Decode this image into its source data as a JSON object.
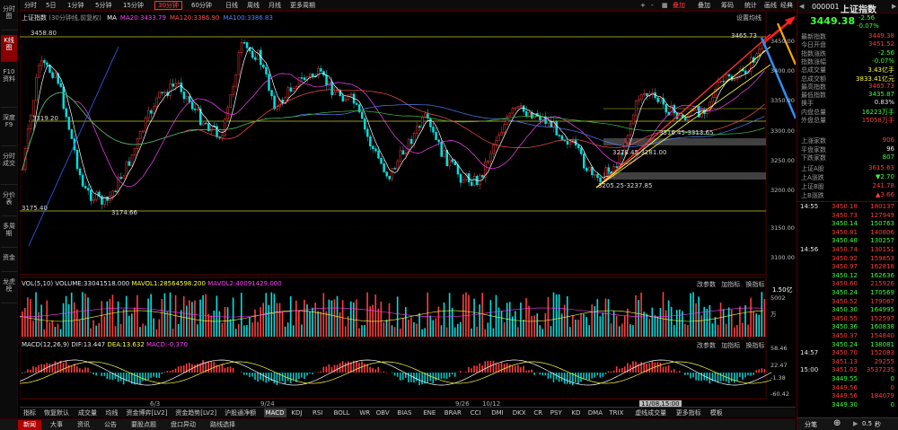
{
  "timeframes": [
    "分时",
    "5日",
    "1分钟",
    "5分钟",
    "15分钟",
    "30分钟",
    "60分钟",
    "日线",
    "周线",
    "月线",
    "更多周期"
  ],
  "active_timeframe": "30分钟",
  "toolbar": {
    "overlay": "叠加",
    "overlay_btn": "叠加",
    "chip": "筹码",
    "stats": "统计",
    "draw": "画线",
    "classic": "经典",
    "indicator": "指标"
  },
  "sidebar": [
    "分时图",
    "K线图",
    "F10资料",
    "深度F9",
    "分时成交",
    "分价表",
    "多周期",
    "资金",
    "龙虎榜"
  ],
  "sidebar_active": "K线图",
  "main_pane": {
    "name": "上证指数",
    "note": "(30分钟线,前复权)",
    "ma": [
      {
        "label": "MA",
        "color": "#ffffff"
      },
      {
        "label": "MA20:3433.79",
        "color": "#ff40ff"
      },
      {
        "label": "MA120:3386.90",
        "color": "#ff5050"
      },
      {
        "label": "MA100:3386.83",
        "color": "#5080ff"
      }
    ],
    "settings": "设置均线",
    "price_axis": [
      "3450.00",
      "3400.00",
      "3350.00",
      "3300.00",
      "3250.00",
      "3200.00",
      "3150.00",
      "3100.00"
    ],
    "annotations": [
      "3458.80",
      "3319.20",
      "3175.40",
      "3174.66",
      "3465.73",
      "3316.45-3313.65",
      "3278.45-3281.00",
      "3205.25-3237.85"
    ]
  },
  "volume_pane": {
    "title": "VOL(5,10)",
    "volume": "VOLUME:33041518.000",
    "mavol1": "MAVOL1:28564598.200",
    "mavol2": "MAVOL2:40091429.000",
    "controls": [
      "改参数",
      "加指标",
      "换指标"
    ],
    "axis": [
      "5002",
      "万"
    ],
    "multiplier": "1.50亿"
  },
  "macd_pane": {
    "title": "MACD(12,26,9)",
    "dif": "DIF:13.447",
    "dea": "DEA:13.632",
    "macd": "MACD:-0.370",
    "controls": [
      "改参数",
      "加指标",
      "换指标"
    ],
    "axis": [
      "58.46",
      "22.47",
      "-1.38",
      "-60.42"
    ]
  },
  "date_axis": [
    "6/3",
    "9/24",
    "9/26",
    "10/12"
  ],
  "cursor_date": "11/08,15:00",
  "indicator_tabs": [
    "指标",
    "恢复默认",
    "成交量",
    "均线",
    "资金博弈[LV2]",
    "资金趋势[LV2]",
    "沪股通净额",
    "MACD",
    "KDJ",
    "RSI",
    "BOLL",
    "WR",
    "OBV",
    "BIAS",
    "ENE",
    "BRAR",
    "CCI",
    "DMI",
    "DKX",
    "CR",
    "PSY",
    "KD",
    "DMA",
    "TRIX",
    "虚线成交量",
    "更多指标",
    "模板"
  ],
  "indicator_active": "MACD",
  "footer_tabs": [
    "新闻",
    "大事",
    "资讯",
    "公告",
    "要股点题",
    "盘口异动",
    "路线选择"
  ],
  "footer_active": "新闻",
  "quote": {
    "code": "000001",
    "name": "上证指数",
    "price": "3449.38",
    "change": "-2.56",
    "pct": "-0.07%",
    "fields": [
      {
        "label": "最新指数",
        "value": "3449.38",
        "color": "#ff3c3c"
      },
      {
        "label": "今日开盘",
        "value": "3451.52",
        "color": "#ff3c3c"
      },
      {
        "label": "指数涨跌",
        "value": "-2.56",
        "color": "#3cff3c"
      },
      {
        "label": "指数涨幅",
        "value": "-0.07%",
        "color": "#3cff3c"
      },
      {
        "label": "总成交量",
        "value": "3.43亿手",
        "color": "#ffff40"
      },
      {
        "label": "总成交额",
        "value": "3833.41亿元",
        "color": "#ffff40"
      },
      {
        "label": "最高指数",
        "value": "3465.73",
        "color": "#ff3c3c"
      },
      {
        "label": "最低指数",
        "value": "3435.87",
        "color": "#3cff3c"
      },
      {
        "label": "换手",
        "value": "0.83%",
        "color": "#e6e6e6"
      },
      {
        "label": "内盘总量",
        "value": "16223万手",
        "color": "#3cff3c"
      },
      {
        "label": "外盘总量",
        "value": "15058万手",
        "color": "#ff3c3c"
      }
    ],
    "breadth": [
      {
        "label": "上涨家数",
        "value": "906",
        "color": "#ff3c3c"
      },
      {
        "label": "平盘家数",
        "value": "96",
        "color": "#e6e6e6"
      },
      {
        "label": "下跌家数",
        "value": "807",
        "color": "#3cff3c"
      }
    ],
    "sub": [
      {
        "label": "上证A股",
        "value": "3615.63",
        "color": "#ff3c3c"
      },
      {
        "label": "上A涨跌",
        "value": "▼2.70",
        "color": "#3cff3c"
      },
      {
        "label": "上证B股",
        "value": "241.78",
        "color": "#ff3c3c"
      },
      {
        "label": "上B涨跌",
        "value": "▲3.66",
        "color": "#ff3c3c"
      }
    ],
    "ticks": [
      {
        "time": "14:55",
        "price": "3450.18",
        "vol": "180137",
        "color": "#ff3c3c"
      },
      {
        "time": "",
        "price": "3450.73",
        "vol": "127949",
        "color": "#ff3c3c"
      },
      {
        "time": "",
        "price": "3450.14",
        "vol": "150763",
        "color": "#3cff3c"
      },
      {
        "time": "",
        "price": "3450.81",
        "vol": "140806",
        "color": "#ff3c3c"
      },
      {
        "time": "",
        "price": "3450.48",
        "vol": "130257",
        "color": "#3cff3c"
      },
      {
        "time": "14:56",
        "price": "3450.74",
        "vol": "130151",
        "color": "#ff3c3c"
      },
      {
        "time": "",
        "price": "3450.92",
        "vol": "159853",
        "color": "#ff3c3c"
      },
      {
        "time": "",
        "price": "3450.97",
        "vol": "162818",
        "color": "#ff3c3c"
      },
      {
        "time": "",
        "price": "3450.12",
        "vol": "162636",
        "color": "#3cff3c"
      },
      {
        "time": "",
        "price": "3450.60",
        "vol": "215926",
        "color": "#ff3c3c"
      },
      {
        "time": "",
        "price": "3450.24",
        "vol": "170569",
        "color": "#3cff3c"
      },
      {
        "time": "",
        "price": "3450.52",
        "vol": "179067",
        "color": "#ff3c3c"
      },
      {
        "time": "",
        "price": "3450.30",
        "vol": "164995",
        "color": "#3cff3c"
      },
      {
        "time": "",
        "price": "3450.55",
        "vol": "152597",
        "color": "#ff3c3c"
      },
      {
        "time": "",
        "price": "3450.36",
        "vol": "160838",
        "color": "#3cff3c"
      },
      {
        "time": "",
        "price": "3450.37",
        "vol": "154840",
        "color": "#ff3c3c"
      },
      {
        "time": "",
        "price": "3450.24",
        "vol": "138081",
        "color": "#3cff3c"
      },
      {
        "time": "14:57",
        "price": "3450.70",
        "vol": "152083",
        "color": "#ff3c3c"
      },
      {
        "time": "",
        "price": "3451.13",
        "vol": "29255",
        "color": "#ff3c3c"
      },
      {
        "time": "15:00",
        "price": "3451.03",
        "vol": "3537235",
        "color": "#ff3c3c"
      },
      {
        "time": "",
        "price": "3449.55",
        "vol": "0",
        "color": "#3cff3c"
      },
      {
        "time": "",
        "price": "3449.56",
        "vol": "0",
        "color": "#ff3c3c"
      },
      {
        "time": "",
        "price": "3449.56",
        "vol": "184079",
        "color": "#ff3c3c"
      },
      {
        "time": "",
        "price": "3449.30",
        "vol": "0",
        "color": "#3cff3c"
      }
    ],
    "bottom": {
      "button": "分笔",
      "speed_value": "0.5",
      "speed_unit": "秒"
    }
  }
}
